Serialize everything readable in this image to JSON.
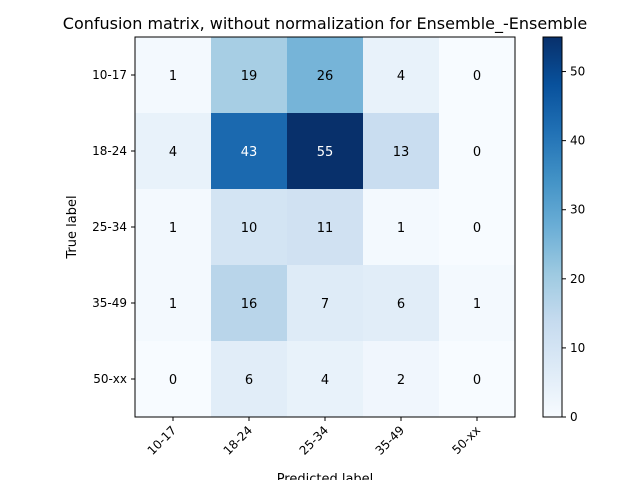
{
  "chart_data": {
    "type": "heatmap",
    "title": "Confusion matrix, without normalization for Ensemble_-Ensemble",
    "xlabel": "Predicted label",
    "ylabel": "True label",
    "x_categories": [
      "10-17",
      "18-24",
      "25-34",
      "35-49",
      "50-xx"
    ],
    "y_categories": [
      "10-17",
      "18-24",
      "25-34",
      "35-49",
      "50-xx"
    ],
    "values": [
      [
        1,
        19,
        26,
        4,
        0
      ],
      [
        4,
        43,
        55,
        13,
        0
      ],
      [
        1,
        10,
        11,
        1,
        0
      ],
      [
        1,
        16,
        7,
        6,
        1
      ],
      [
        0,
        6,
        4,
        2,
        0
      ]
    ],
    "colorbar": {
      "min": 0,
      "max": 55,
      "ticks": [
        0,
        10,
        20,
        30,
        40,
        50
      ],
      "colormap": "Blues"
    },
    "annotation_colors": {
      "light": "#000000",
      "dark": "#ffffff"
    }
  }
}
